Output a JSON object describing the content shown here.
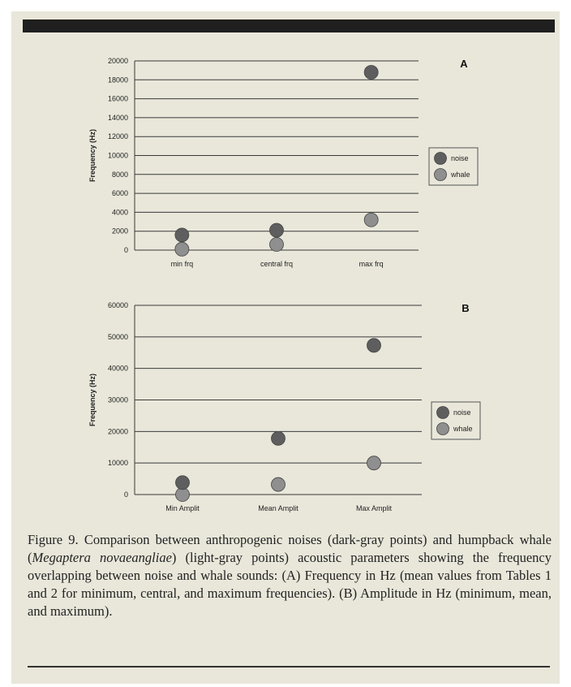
{
  "chart_data": [
    {
      "type": "scatter",
      "panel": "A",
      "ylabel": "Frequency (Hz)",
      "categories": [
        "min frq",
        "central frq",
        "max frq"
      ],
      "ylim": [
        0,
        20000
      ],
      "yticks": [
        0,
        2000,
        4000,
        6000,
        8000,
        10000,
        12000,
        14000,
        16000,
        18000,
        20000
      ],
      "grid": true,
      "legend": "right",
      "series": [
        {
          "name": "noise",
          "color": "#5e5e5e",
          "values": [
            1600,
            2100,
            18800
          ]
        },
        {
          "name": "whale",
          "color": "#8f8f8f",
          "values": [
            100,
            600,
            3200
          ]
        }
      ]
    },
    {
      "type": "scatter",
      "panel": "B",
      "ylabel": "Frequency (Hz)",
      "categories": [
        "Min Amplit",
        "Mean Amplit",
        "Max Amplit"
      ],
      "ylim": [
        0,
        60000
      ],
      "yticks": [
        0,
        10000,
        20000,
        30000,
        40000,
        50000,
        60000
      ],
      "grid": true,
      "legend": "right",
      "series": [
        {
          "name": "noise",
          "color": "#5e5e5e",
          "values": [
            3800,
            17800,
            47300
          ]
        },
        {
          "name": "whale",
          "color": "#8f8f8f",
          "values": [
            0,
            3200,
            10000
          ]
        }
      ]
    }
  ],
  "caption": {
    "part1": "Figure 9.  Comparison between anthropogenic noises (dark-gray points) and humpback whale (",
    "species": "Megaptera novaeangliae",
    "part2": ") (light-gray points) acoustic parameters showing the frequency overlapping between noise and whale sounds: (A) Frequency in Hz (mean values from Tables 1 and 2 for minimum, central, and maximum frequencies). (B) Amplitude in Hz (minimum, mean, and maximum)."
  }
}
